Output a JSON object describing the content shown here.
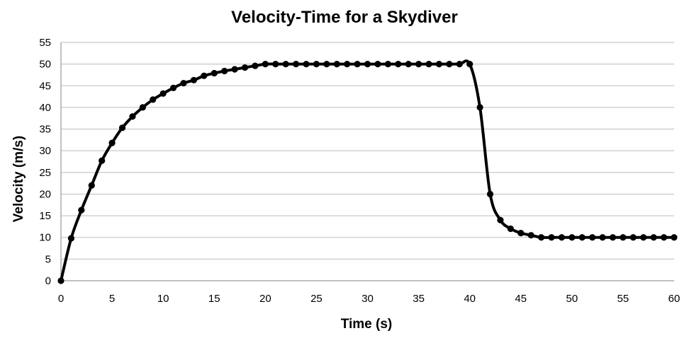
{
  "chart_data": {
    "type": "line",
    "title": "Velocity-Time for a Skydiver",
    "xlabel": "Time (s)",
    "ylabel": "Velocity (m/s)",
    "xlim": [
      0,
      60
    ],
    "ylim": [
      0,
      55
    ],
    "x_ticks": [
      0,
      5,
      10,
      15,
      20,
      25,
      30,
      35,
      40,
      45,
      50,
      55,
      60
    ],
    "y_ticks": [
      0,
      5,
      10,
      15,
      20,
      25,
      30,
      35,
      40,
      45,
      50,
      55
    ],
    "grid": "horizontal",
    "legend": "none",
    "series": [
      {
        "color": "#000000",
        "x": [
          0,
          1,
          2,
          3,
          4,
          5,
          6,
          7,
          8,
          9,
          10,
          11,
          12,
          13,
          14,
          15,
          16,
          17,
          18,
          19,
          20,
          21,
          22,
          23,
          24,
          25,
          26,
          27,
          28,
          29,
          30,
          31,
          32,
          33,
          34,
          35,
          36,
          37,
          38,
          39,
          40,
          41,
          42,
          43,
          44,
          45,
          46,
          47,
          48,
          49,
          50,
          51,
          52,
          53,
          54,
          55,
          56,
          57,
          58,
          59,
          60
        ],
        "y": [
          0,
          9.8,
          16.3,
          22,
          27.7,
          31.8,
          35.3,
          37.9,
          40,
          41.8,
          43.2,
          44.5,
          45.6,
          46.3,
          47.3,
          47.9,
          48.4,
          48.8,
          49.2,
          49.6,
          50,
          50,
          50,
          50,
          50,
          50,
          50,
          50,
          50,
          50,
          50,
          50,
          50,
          50,
          50,
          50,
          50,
          50,
          50,
          50,
          50,
          40,
          20,
          14,
          12,
          11,
          10.5,
          10,
          10,
          10,
          10,
          10,
          10,
          10,
          10,
          10,
          10,
          10,
          10,
          10,
          10
        ]
      }
    ]
  }
}
